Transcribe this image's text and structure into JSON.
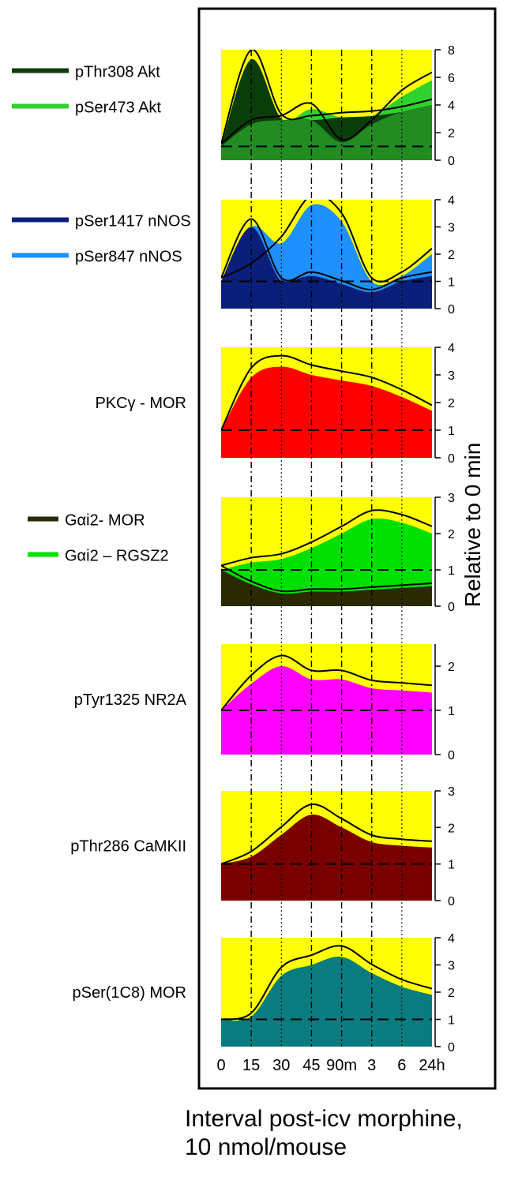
{
  "figure": {
    "x_axis_title_line1": "Interval post-icv morphine,",
    "x_axis_title_line2": "10 nmol/mouse",
    "y_axis_title": "Relative to 0 min",
    "x_tick_labels": [
      "0",
      "15",
      "30",
      "45",
      "90m",
      "3",
      "6",
      "24h"
    ],
    "background_color": "#ffff00",
    "baseline_value": 1
  },
  "chart_data": [
    {
      "type": "area",
      "x": [
        "0",
        "15",
        "30",
        "45",
        "90m",
        "3",
        "6",
        "24h"
      ],
      "ylim": [
        0,
        8
      ],
      "yticks": [
        0,
        2,
        4,
        6,
        8
      ],
      "legend": [
        "pThr308 Akt",
        "pSer473 Akt"
      ],
      "series": [
        {
          "name": "pThr308 Akt",
          "color": "#0b3d0b",
          "values": [
            1,
            7.3,
            3.0,
            2.9,
            3.1,
            3.2,
            3.5,
            4.0
          ]
        },
        {
          "name": "pSer473 Akt",
          "color": "#2fd12f",
          "values": [
            1,
            2.6,
            2.9,
            3.7,
            1.3,
            2.6,
            4.6,
            5.8
          ]
        }
      ],
      "fill_colors": [
        "#0b3d0b",
        "#2fd12f",
        "#228b22"
      ],
      "grid": "vertical"
    },
    {
      "type": "area",
      "x": [
        "0",
        "15",
        "30",
        "45",
        "90m",
        "3",
        "6",
        "24h"
      ],
      "ylim": [
        0,
        4
      ],
      "yticks": [
        0,
        1,
        2,
        3,
        4
      ],
      "legend": [
        "pSer1417 nNOS",
        "pSer847   nNOS"
      ],
      "series": [
        {
          "name": "pSer1417 nNOS",
          "color": "#0a1f7a",
          "values": [
            1,
            3.0,
            1.0,
            1.2,
            0.9,
            0.6,
            1.0,
            1.2
          ]
        },
        {
          "name": "pSer847   nNOS",
          "color": "#1e90ff",
          "values": [
            1,
            1.5,
            2.4,
            3.8,
            3.2,
            1.0,
            1.2,
            2.0
          ]
        }
      ],
      "fill_colors": [
        "#0a1f7a",
        "#1e90ff",
        "#0a1f7a"
      ],
      "grid": "vertical"
    },
    {
      "type": "area",
      "x": [
        "0",
        "15",
        "30",
        "45",
        "90m",
        "3",
        "6",
        "24h"
      ],
      "ylim": [
        0,
        4
      ],
      "yticks": [
        0,
        1,
        2,
        3,
        4
      ],
      "legend": [
        "PKCγ - MOR"
      ],
      "series": [
        {
          "name": "PKCγ - MOR",
          "color": "#ff0000",
          "values": [
            1,
            2.9,
            3.3,
            3.0,
            2.8,
            2.6,
            2.2,
            1.7
          ]
        }
      ],
      "fill_colors": [
        "#ff0000"
      ],
      "grid": "vertical"
    },
    {
      "type": "area",
      "x": [
        "0",
        "15",
        "30",
        "45",
        "90m",
        "3",
        "6",
        "24h"
      ],
      "ylim": [
        0,
        3
      ],
      "yticks": [
        0,
        1,
        2,
        3
      ],
      "legend": [
        "Gαi2- MOR",
        "Gαi2 – RGSZ2"
      ],
      "series": [
        {
          "name": "Gαi2- MOR",
          "color": "#2a2a00",
          "values": [
            1,
            0.6,
            0.35,
            0.4,
            0.4,
            0.45,
            0.5,
            0.55
          ]
        },
        {
          "name": "Gαi2 – RGSZ2",
          "color": "#00e000",
          "values": [
            1,
            1.2,
            1.3,
            1.6,
            2.0,
            2.4,
            2.3,
            2.0
          ]
        }
      ],
      "fill_colors": [
        "#228b22",
        "#00e000"
      ],
      "grid": "vertical"
    },
    {
      "type": "area",
      "x": [
        "0",
        "15",
        "30",
        "45",
        "90m",
        "3",
        "6",
        "24h"
      ],
      "ylim": [
        0,
        2.5
      ],
      "yticks": [
        0,
        1,
        2
      ],
      "legend": [
        "pTyr1325 NR2A"
      ],
      "series": [
        {
          "name": "pTyr1325 NR2A",
          "color": "#ff00ff",
          "values": [
            1,
            1.6,
            2.0,
            1.7,
            1.7,
            1.5,
            1.45,
            1.4
          ]
        }
      ],
      "fill_colors": [
        "#ff00ff"
      ],
      "grid": "vertical"
    },
    {
      "type": "area",
      "x": [
        "0",
        "15",
        "30",
        "45",
        "90m",
        "3",
        "6",
        "24h"
      ],
      "ylim": [
        0,
        3
      ],
      "yticks": [
        0,
        1,
        2,
        3
      ],
      "legend": [
        "pThr286 CaMKII"
      ],
      "series": [
        {
          "name": "pThr286 CaMKII",
          "color": "#7a0000",
          "values": [
            1,
            1.2,
            1.8,
            2.35,
            2.0,
            1.6,
            1.5,
            1.45
          ]
        }
      ],
      "fill_colors": [
        "#7a0000"
      ],
      "grid": "vertical"
    },
    {
      "type": "area",
      "x": [
        "0",
        "15",
        "30",
        "45",
        "90m",
        "3",
        "6",
        "24h"
      ],
      "ylim": [
        0,
        4
      ],
      "yticks": [
        0,
        1,
        2,
        3,
        4
      ],
      "legend": [
        "pSer(1C8) MOR"
      ],
      "series": [
        {
          "name": "pSer(1C8) MOR",
          "color": "#0a7c80",
          "values": [
            1,
            1.1,
            2.6,
            3.0,
            3.3,
            2.7,
            2.2,
            1.9
          ]
        }
      ],
      "fill_colors": [
        "#0a7c80"
      ],
      "grid": "vertical"
    }
  ]
}
